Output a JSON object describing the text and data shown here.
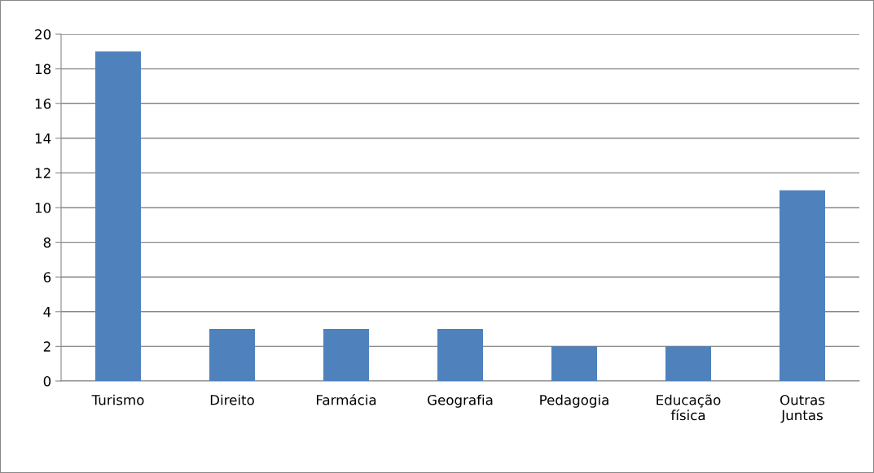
{
  "chart_data": {
    "type": "bar",
    "categories": [
      "Turismo",
      "Direito",
      "Farmácia",
      "Geografia",
      "Pedagogia",
      "Educação física",
      "Outras Juntas"
    ],
    "values": [
      19,
      3,
      3,
      3,
      2,
      2,
      11
    ],
    "color": "#4f81bd",
    "ylim": [
      0,
      20
    ],
    "yticks": [
      0,
      2,
      4,
      6,
      8,
      10,
      12,
      14,
      16,
      18,
      20
    ],
    "grid": "y",
    "legend": false
  }
}
